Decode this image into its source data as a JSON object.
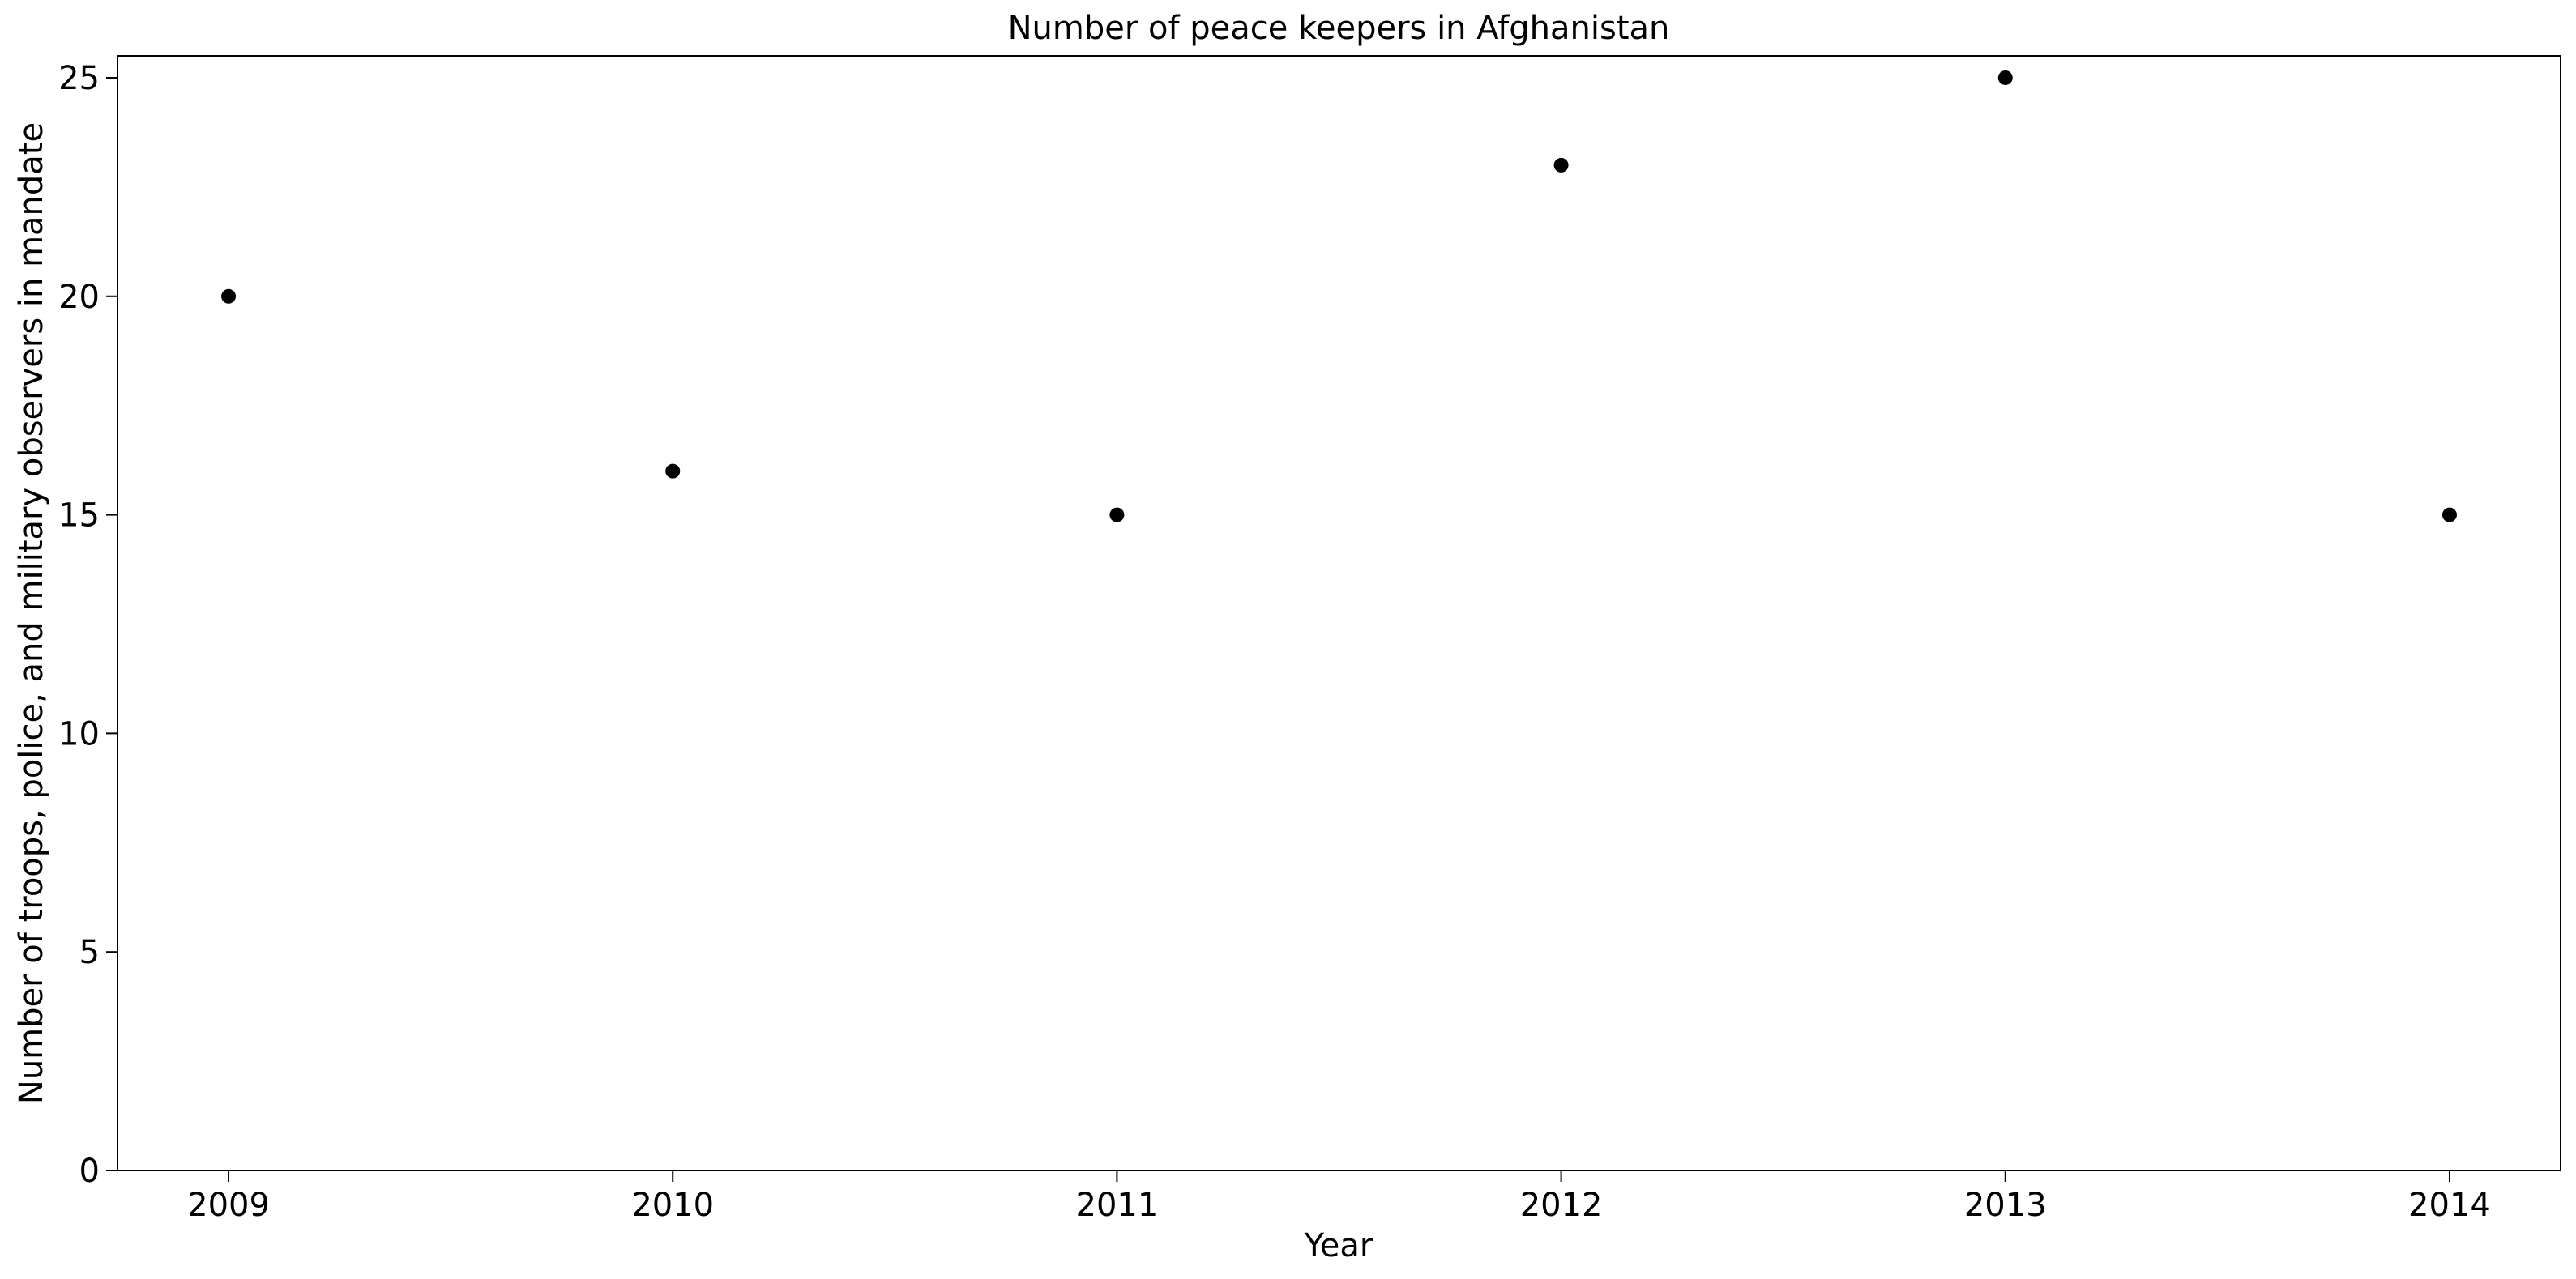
{
  "chart_data": {
    "type": "scatter",
    "title": "Number of peace keepers in Afghanistan",
    "xlabel": "Year",
    "ylabel": "Number of troops, police, and military observers in mandate",
    "x": [
      2009,
      2010,
      2011,
      2012,
      2013,
      2014
    ],
    "y": [
      20,
      16,
      15,
      23,
      25,
      15
    ],
    "x_ticks": [
      "2009",
      "2010",
      "2011",
      "2012",
      "2013",
      "2014"
    ],
    "y_ticks": [
      "0",
      "5",
      "10",
      "15",
      "20",
      "25"
    ],
    "xlim": [
      2008.75,
      2014.25
    ],
    "ylim": [
      0,
      25.5
    ],
    "grid": false,
    "marker_color": "#000000"
  }
}
